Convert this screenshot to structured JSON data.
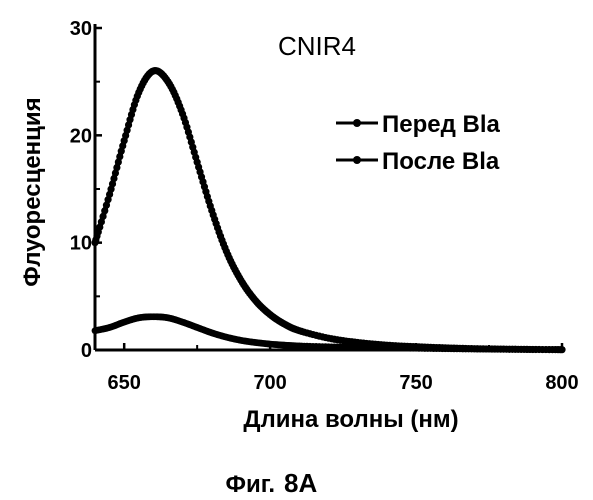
{
  "chart_data": {
    "type": "line",
    "title": "CNIR4",
    "xlabel": "Длина волны (нм)",
    "ylabel": "Флуоресценция",
    "xlim": [
      640,
      800
    ],
    "ylim": [
      0,
      30
    ],
    "xticks": [
      650,
      700,
      750,
      800
    ],
    "yticks": [
      0,
      10,
      20,
      30
    ],
    "legend": "top-right",
    "grid": false,
    "series": [
      {
        "name": "Перед Bla",
        "x": [
          640,
          645,
          650,
          655,
          660,
          665,
          670,
          675,
          680,
          685,
          690,
          695,
          700,
          705,
          710,
          720,
          730,
          740,
          750,
          760,
          770,
          780,
          790,
          800
        ],
        "y": [
          10,
          14.5,
          19.5,
          24,
          26,
          25,
          22,
          17.5,
          13,
          9.2,
          6.5,
          4.6,
          3.3,
          2.4,
          1.8,
          1.1,
          0.7,
          0.45,
          0.3,
          0.2,
          0.12,
          0.08,
          0.05,
          0.03
        ]
      },
      {
        "name": "После Bla",
        "x": [
          640,
          645,
          650,
          655,
          660,
          665,
          670,
          675,
          680,
          685,
          690,
          695,
          700,
          705,
          710,
          720,
          730,
          740,
          750,
          760,
          770,
          780,
          790,
          800
        ],
        "y": [
          1.8,
          2.1,
          2.6,
          3.0,
          3.1,
          3.0,
          2.6,
          2.1,
          1.6,
          1.2,
          0.9,
          0.7,
          0.55,
          0.45,
          0.38,
          0.3,
          0.25,
          0.2,
          0.16,
          0.12,
          0.09,
          0.07,
          0.05,
          0.03
        ]
      }
    ],
    "colors": {
      "line": "#000000"
    }
  },
  "caption": {
    "prefix": "Фиг.",
    "number": "8A"
  }
}
